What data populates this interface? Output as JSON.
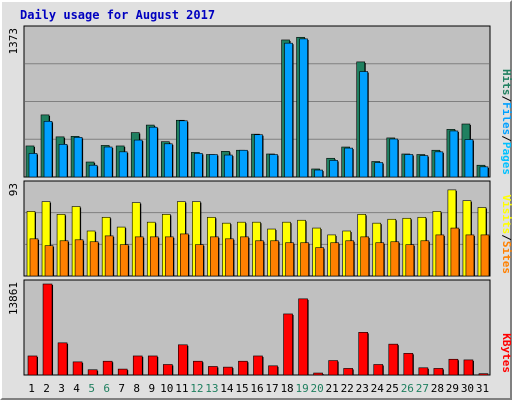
{
  "chart_title": "Daily usage for August 2017",
  "colors": {
    "title": "#0000c0",
    "panel_bg": "#c0c0c0",
    "hits": "#208060",
    "files": "#00a0ff",
    "pages": "#00c0ff",
    "visits": "#ffff00",
    "sites": "#ff8000",
    "kbytes": "#ff0000",
    "weekday_label": "#000000",
    "weekend_label": "#208060",
    "separator": "#000000"
  },
  "chart_data": [
    {
      "type": "bar",
      "panel": "hits-files-pages",
      "ymax": 1373,
      "ymax_label": "1373",
      "legend": [
        {
          "text": "Hits",
          "color_key": "hits"
        },
        {
          "text": "Files",
          "color_key": "files"
        },
        {
          "text": "Pages",
          "color_key": "pages"
        }
      ],
      "categories": [
        "1",
        "2",
        "3",
        "4",
        "5",
        "6",
        "7",
        "8",
        "9",
        "10",
        "11",
        "12",
        "13",
        "14",
        "15",
        "16",
        "17",
        "18",
        "19",
        "20",
        "21",
        "22",
        "23",
        "24",
        "25",
        "26",
        "27",
        "28",
        "29",
        "30",
        "31"
      ],
      "series": [
        {
          "name": "Hits",
          "values": [
            290,
            580,
            375,
            380,
            140,
            295,
            290,
            415,
            485,
            330,
            530,
            230,
            210,
            240,
            250,
            400,
            215,
            1280,
            1305,
            75,
            175,
            280,
            1075,
            145,
            365,
            215,
            210,
            250,
            445,
            495,
            110
          ]
        },
        {
          "name": "Files",
          "values": [
            220,
            520,
            305,
            370,
            110,
            280,
            235,
            345,
            465,
            310,
            525,
            220,
            210,
            205,
            250,
            395,
            210,
            1250,
            1290,
            65,
            155,
            270,
            985,
            135,
            355,
            210,
            200,
            235,
            430,
            350,
            95
          ]
        }
      ]
    },
    {
      "type": "bar",
      "panel": "visits-sites",
      "ymax": 93,
      "ymax_label": "93",
      "legend": [
        {
          "text": "Visits",
          "color_key": "visits"
        },
        {
          "text": "Sites",
          "color_key": "sites"
        }
      ],
      "categories": [
        "1",
        "2",
        "3",
        "4",
        "5",
        "6",
        "7",
        "8",
        "9",
        "10",
        "11",
        "12",
        "13",
        "14",
        "15",
        "16",
        "17",
        "18",
        "19",
        "20",
        "21",
        "22",
        "23",
        "24",
        "25",
        "26",
        "27",
        "28",
        "29",
        "30",
        "31"
      ],
      "series": [
        {
          "name": "Visits",
          "values": [
            66,
            76,
            63,
            71,
            46,
            60,
            50,
            75,
            55,
            63,
            76,
            76,
            60,
            54,
            55,
            55,
            48,
            55,
            57,
            49,
            42,
            46,
            63,
            54,
            58,
            59,
            60,
            66,
            88,
            77,
            70
          ]
        },
        {
          "name": "Sites",
          "values": [
            38,
            31,
            36,
            37,
            35,
            41,
            32,
            40,
            40,
            40,
            43,
            32,
            40,
            38,
            40,
            36,
            36,
            34,
            34,
            29,
            34,
            36,
            40,
            34,
            35,
            32,
            36,
            42,
            49,
            42,
            42
          ]
        }
      ]
    },
    {
      "type": "bar",
      "panel": "kbytes",
      "ymax": 13861,
      "ymax_label": "13861",
      "legend": [
        {
          "text": "KBytes",
          "color_key": "kbytes"
        }
      ],
      "categories": [
        "1",
        "2",
        "3",
        "4",
        "5",
        "6",
        "7",
        "8",
        "9",
        "10",
        "11",
        "12",
        "13",
        "14",
        "15",
        "16",
        "17",
        "18",
        "19",
        "20",
        "21",
        "22",
        "23",
        "24",
        "25",
        "26",
        "27",
        "28",
        "29",
        "30",
        "31"
      ],
      "series": [
        {
          "name": "KBytes",
          "values": [
            2900,
            13861,
            4900,
            2000,
            800,
            2100,
            900,
            2900,
            2900,
            1600,
            4600,
            2100,
            1300,
            1200,
            2100,
            2900,
            1400,
            9300,
            11600,
            300,
            2200,
            1000,
            6500,
            1600,
            4700,
            3300,
            1100,
            1000,
            2400,
            2300,
            200
          ]
        }
      ]
    }
  ],
  "day_labels": [
    {
      "text": "1",
      "weekend": false
    },
    {
      "text": "2",
      "weekend": false
    },
    {
      "text": "3",
      "weekend": false
    },
    {
      "text": "4",
      "weekend": false
    },
    {
      "text": "5",
      "weekend": true
    },
    {
      "text": "6",
      "weekend": true
    },
    {
      "text": "7",
      "weekend": false
    },
    {
      "text": "8",
      "weekend": false
    },
    {
      "text": "9",
      "weekend": false
    },
    {
      "text": "10",
      "weekend": false
    },
    {
      "text": "11",
      "weekend": false
    },
    {
      "text": "12",
      "weekend": true
    },
    {
      "text": "13",
      "weekend": true
    },
    {
      "text": "14",
      "weekend": false
    },
    {
      "text": "15",
      "weekend": false
    },
    {
      "text": "16",
      "weekend": false
    },
    {
      "text": "17",
      "weekend": false
    },
    {
      "text": "18",
      "weekend": false
    },
    {
      "text": "19",
      "weekend": true
    },
    {
      "text": "20",
      "weekend": true
    },
    {
      "text": "21",
      "weekend": false
    },
    {
      "text": "22",
      "weekend": false
    },
    {
      "text": "23",
      "weekend": false
    },
    {
      "text": "24",
      "weekend": false
    },
    {
      "text": "25",
      "weekend": false
    },
    {
      "text": "26",
      "weekend": true
    },
    {
      "text": "27",
      "weekend": true
    },
    {
      "text": "28",
      "weekend": false
    },
    {
      "text": "29",
      "weekend": false
    },
    {
      "text": "30",
      "weekend": false
    },
    {
      "text": "31",
      "weekend": false
    }
  ]
}
